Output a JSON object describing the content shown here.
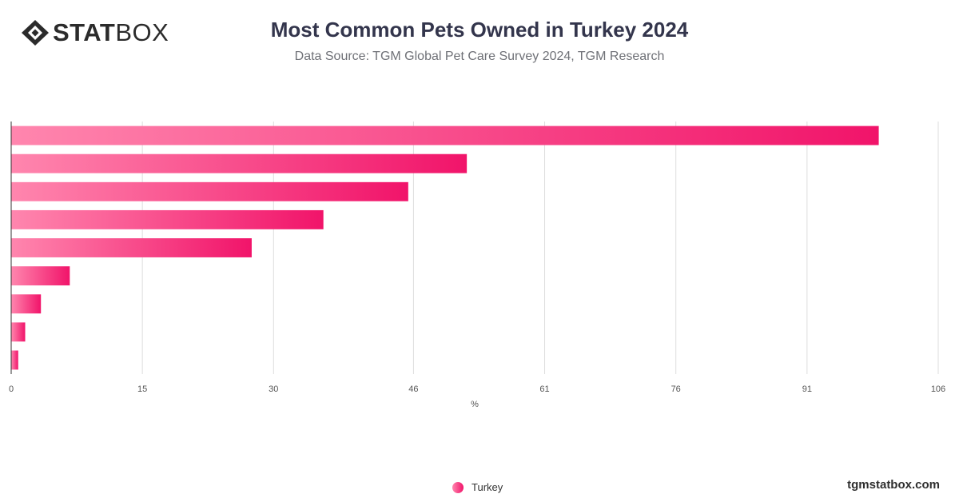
{
  "brand": {
    "logo_bold": "STAT",
    "logo_light": "BOX",
    "footer": "tgmstatbox.com"
  },
  "header": {
    "title": "Most Common Pets Owned in Turkey 2024",
    "subtitle": "Data Source: TGM Global Pet Care Survey 2024, TGM Research"
  },
  "legend": {
    "label": "Turkey"
  },
  "colors": {
    "bar_start": "#ff86ae",
    "bar_end": "#f1146a",
    "grid": "#dddddd",
    "axis": "#333333"
  },
  "chart_data": {
    "type": "bar",
    "orientation": "horizontal",
    "series": [
      {
        "name": "Turkey",
        "values": [
          99.2,
          52.1,
          45.4,
          35.7,
          27.5,
          6.7,
          3.4,
          1.6,
          0.8
        ]
      }
    ],
    "xlabel": "%",
    "x_ticks": [
      0,
      15,
      30,
      46,
      61,
      76,
      91,
      106
    ],
    "xlim": [
      0,
      106
    ],
    "grid": true,
    "legend_position": "bottom"
  }
}
